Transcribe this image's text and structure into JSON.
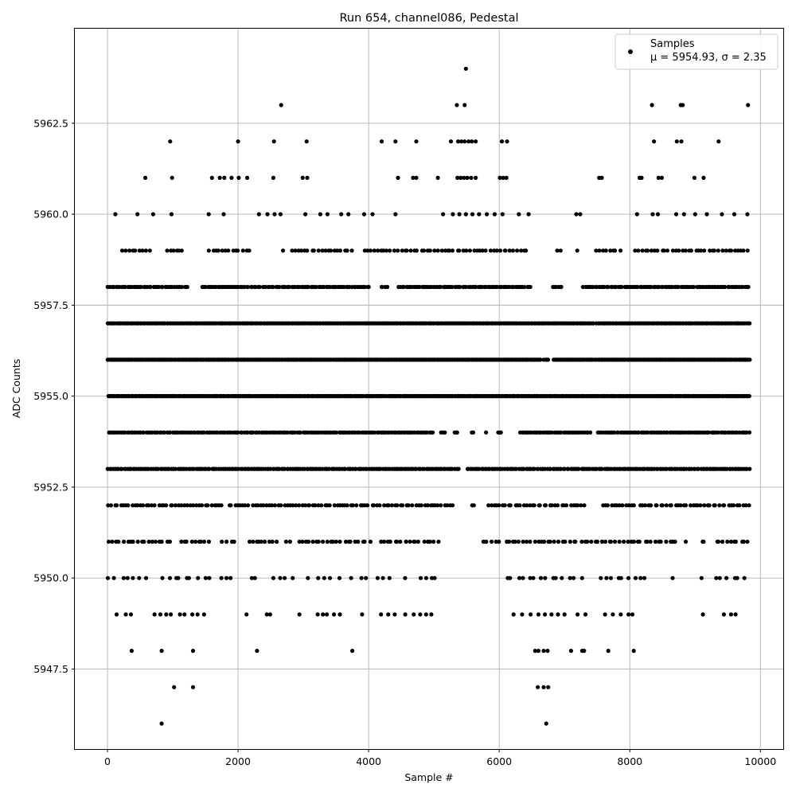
{
  "chart_data": {
    "type": "scatter",
    "title": "Run 654, channel086, Pedestal",
    "xlabel": "Sample #",
    "ylabel": "ADC Counts",
    "xlim": [
      -500,
      10350
    ],
    "ylim": [
      5945.3,
      5965.1
    ],
    "x_ticks": [
      0,
      2000,
      4000,
      6000,
      8000,
      10000
    ],
    "x_tick_labels": [
      "0",
      "2000",
      "4000",
      "6000",
      "8000",
      "10000"
    ],
    "y_ticks": [
      5947.5,
      5950.0,
      5952.5,
      5955.0,
      5957.5,
      5960.0,
      5962.5
    ],
    "y_tick_labels": [
      "5947.5",
      "5950.0",
      "5952.5",
      "5955.0",
      "5957.5",
      "5960.0",
      "5962.5"
    ],
    "grid": true,
    "legend_position": "top-right",
    "marker_color": "#000000",
    "series": [
      {
        "name": "Samples",
        "label": "μ = 5954.93, σ = 2.35",
        "x_range": [
          0,
          9840
        ],
        "points": [
          [
            830,
            5946
          ],
          [
            6720,
            5946
          ],
          [
            1020,
            5947
          ],
          [
            1310,
            5947
          ],
          [
            6590,
            5947
          ],
          [
            6680,
            5947
          ],
          [
            6750,
            5947
          ],
          [
            370,
            5948
          ],
          [
            830,
            5948
          ],
          [
            1310,
            5948
          ],
          [
            2290,
            5948
          ],
          [
            3750,
            5948
          ],
          [
            6550,
            5948
          ],
          [
            6600,
            5948
          ],
          [
            6680,
            5948
          ],
          [
            6740,
            5948
          ],
          [
            7100,
            5948
          ],
          [
            7270,
            5948
          ],
          [
            7300,
            5948
          ],
          [
            7670,
            5948
          ],
          [
            8060,
            5948
          ],
          [
            5490,
            5964
          ],
          [
            2660,
            5963
          ],
          [
            5350,
            5963
          ],
          [
            5470,
            5963
          ],
          [
            8340,
            5963
          ],
          [
            8780,
            5963
          ],
          [
            8810,
            5963
          ],
          [
            9810,
            5963
          ],
          [
            960,
            5962
          ],
          [
            2000,
            5962
          ],
          [
            2550,
            5962
          ],
          [
            3050,
            5962
          ],
          [
            4200,
            5962
          ],
          [
            4410,
            5962
          ],
          [
            4730,
            5962
          ],
          [
            5260,
            5962
          ],
          [
            5370,
            5962
          ],
          [
            5420,
            5962
          ],
          [
            5470,
            5962
          ],
          [
            5530,
            5962
          ],
          [
            5580,
            5962
          ],
          [
            5640,
            5962
          ],
          [
            6040,
            5962
          ],
          [
            6120,
            5962
          ],
          [
            8370,
            5962
          ],
          [
            8720,
            5962
          ],
          [
            8790,
            5962
          ],
          [
            9360,
            5962
          ],
          [
            580,
            5961
          ],
          [
            990,
            5961
          ],
          [
            1600,
            5961
          ],
          [
            1720,
            5961
          ],
          [
            1790,
            5961
          ],
          [
            1900,
            5961
          ],
          [
            2010,
            5961
          ],
          [
            2140,
            5961
          ],
          [
            2540,
            5961
          ],
          [
            2990,
            5961
          ],
          [
            3060,
            5961
          ],
          [
            4450,
            5961
          ],
          [
            4680,
            5961
          ],
          [
            4730,
            5961
          ],
          [
            5060,
            5961
          ],
          [
            5360,
            5961
          ],
          [
            5410,
            5961
          ],
          [
            5460,
            5961
          ],
          [
            5510,
            5961
          ],
          [
            5570,
            5961
          ],
          [
            5640,
            5961
          ],
          [
            6010,
            5961
          ],
          [
            6060,
            5961
          ],
          [
            6110,
            5961
          ],
          [
            7530,
            5961
          ],
          [
            7570,
            5961
          ],
          [
            8150,
            5961
          ],
          [
            8180,
            5961
          ],
          [
            8440,
            5961
          ],
          [
            8490,
            5961
          ],
          [
            8990,
            5961
          ],
          [
            9130,
            5961
          ],
          [
            120,
            5960
          ],
          [
            460,
            5960
          ],
          [
            700,
            5960
          ],
          [
            980,
            5960
          ],
          [
            1550,
            5960
          ],
          [
            1780,
            5960
          ],
          [
            2320,
            5960
          ],
          [
            2450,
            5960
          ],
          [
            2560,
            5960
          ],
          [
            2650,
            5960
          ],
          [
            3030,
            5960
          ],
          [
            3260,
            5960
          ],
          [
            3370,
            5960
          ],
          [
            3580,
            5960
          ],
          [
            3690,
            5960
          ],
          [
            3930,
            5960
          ],
          [
            4060,
            5960
          ],
          [
            4410,
            5960
          ],
          [
            5140,
            5960
          ],
          [
            5290,
            5960
          ],
          [
            5390,
            5960
          ],
          [
            5490,
            5960
          ],
          [
            5590,
            5960
          ],
          [
            5690,
            5960
          ],
          [
            5810,
            5960
          ],
          [
            5930,
            5960
          ],
          [
            6050,
            5960
          ],
          [
            6300,
            5960
          ],
          [
            6450,
            5960
          ],
          [
            7180,
            5960
          ],
          [
            7240,
            5960
          ],
          [
            8110,
            5960
          ],
          [
            8350,
            5960
          ],
          [
            8430,
            5960
          ],
          [
            8710,
            5960
          ],
          [
            8830,
            5960
          ],
          [
            9000,
            5960
          ],
          [
            9180,
            5960
          ],
          [
            9410,
            5960
          ],
          [
            9600,
            5960
          ],
          [
            9800,
            5960
          ]
        ],
        "levels": [
          {
            "y": 5949,
            "x": [
              140,
              280,
              360,
              720,
              810,
              900,
              970,
              1110,
              1180,
              1300,
              1380,
              1480,
              2130,
              2440,
              2490,
              2940,
              3220,
              3300,
              3360,
              3470,
              3560,
              3900,
              4190,
              4300,
              4400,
              4560,
              4690,
              4790,
              4880,
              4960,
              6220,
              6350,
              6480,
              6600,
              6700,
              6800,
              6900,
              7000,
              7200,
              7320,
              7620,
              7740,
              7860,
              7980,
              8040,
              9120,
              9440,
              9550,
              9620
            ],
            "gaps": []
          },
          {
            "y": 5950,
            "x_start": 0,
            "x_end": 9800,
            "count": 110,
            "gaps": [
              [
                600,
                800
              ],
              [
                1560,
                1730
              ],
              [
                1950,
                2140
              ],
              [
                2340,
                2450
              ],
              [
                2860,
                3000
              ],
              [
                3080,
                3190
              ],
              [
                3560,
                3660
              ],
              [
                3760,
                3880
              ],
              [
                3980,
                4100
              ],
              [
                4420,
                4510
              ],
              [
                4630,
                4700
              ],
              [
                5070,
                6090
              ],
              [
                7300,
                7400
              ],
              [
                8300,
                8650
              ],
              [
                8700,
                9080
              ],
              [
                9130,
                9280
              ]
            ]
          },
          {
            "y": 5951,
            "x_start": 0,
            "x_end": 9840,
            "count": 180,
            "gaps": [
              [
                1000,
                1110
              ],
              [
                1560,
                1750
              ],
              [
                1960,
                2170
              ],
              [
                2650,
                2720
              ],
              [
                2830,
                2910
              ],
              [
                4030,
                4140
              ],
              [
                5120,
                5740
              ],
              [
                6050,
                6110
              ],
              [
                8700,
                8840
              ],
              [
                8920,
                9040
              ],
              [
                9140,
                9320
              ]
            ]
          },
          {
            "y": 5952,
            "x_start": 0,
            "x_end": 9840,
            "count": 220,
            "gaps": [
              [
                1790,
                1820
              ],
              [
                5310,
                5530
              ],
              [
                5620,
                5820
              ],
              [
                7320,
                7570
              ],
              [
                8090,
                8150
              ]
            ]
          },
          {
            "y": 5953,
            "x_start": 0,
            "x_end": 9840,
            "count": 360,
            "gaps": [
              [
                5380,
                5510
              ]
            ]
          },
          {
            "y": 5954,
            "x_start": 0,
            "x_end": 9840,
            "count": 340,
            "gaps": [
              [
                5020,
                5100
              ],
              [
                5180,
                5300
              ],
              [
                5360,
                5580
              ],
              [
                5620,
                5780
              ],
              [
                5830,
                5950
              ],
              [
                6060,
                6310
              ],
              [
                7420,
                7470
              ]
            ]
          },
          {
            "y": 5955,
            "x_start": 0,
            "x_end": 9840,
            "count": 560,
            "gaps": []
          },
          {
            "y": 5956,
            "x_start": 0,
            "x_end": 9840,
            "count": 520,
            "gaps": [
              [
                6630,
                6680
              ],
              [
                6760,
                6830
              ]
            ]
          },
          {
            "y": 5957,
            "x_start": 0,
            "x_end": 9840,
            "count": 480,
            "gaps": [
              [
                7450,
                7480
              ]
            ]
          },
          {
            "y": 5958,
            "x_start": 0,
            "x_end": 9840,
            "count": 330,
            "gaps": [
              [
                1230,
                1420
              ],
              [
                4040,
                4190
              ],
              [
                4300,
                4440
              ],
              [
                6510,
                6790
              ],
              [
                6980,
                7280
              ]
            ]
          },
          {
            "y": 5959,
            "x_start": 220,
            "x_end": 9840,
            "count": 190,
            "gaps": [
              [
                660,
                880
              ],
              [
                1160,
                1520
              ],
              [
                2210,
                2640
              ],
              [
                2720,
                2810
              ],
              [
                3770,
                3940
              ],
              [
                6420,
                6830
              ],
              [
                6940,
                7140
              ],
              [
                7200,
                7420
              ],
              [
                7900,
                8050
              ]
            ]
          }
        ]
      }
    ]
  }
}
